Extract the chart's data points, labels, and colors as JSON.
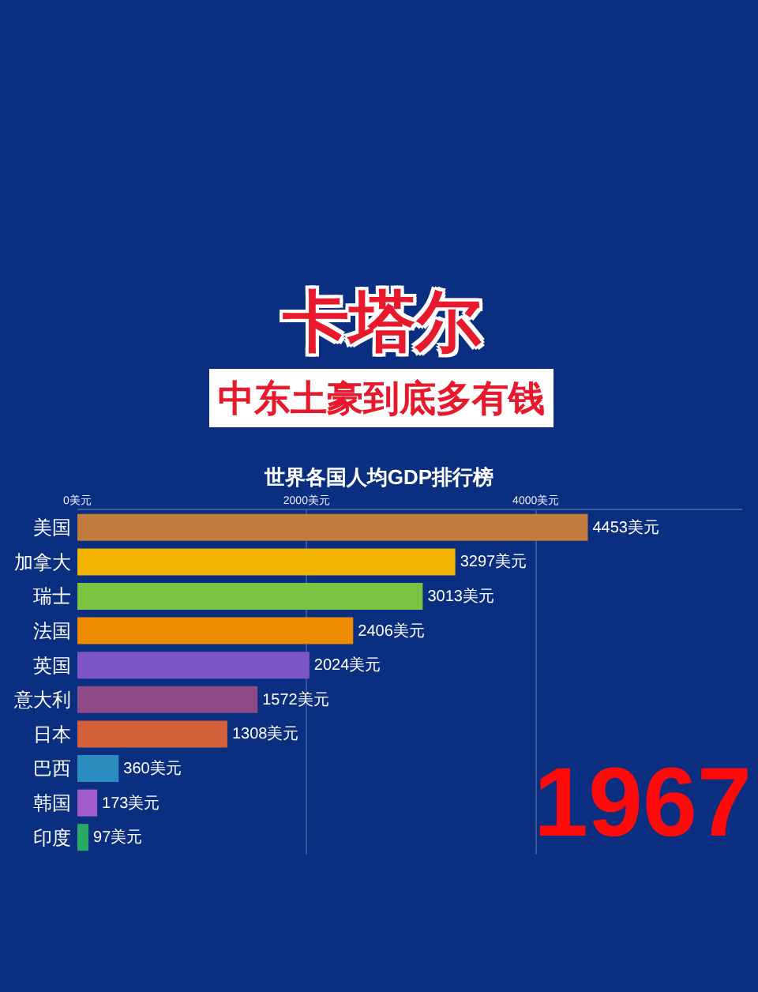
{
  "chart_data": {
    "type": "bar",
    "orientation": "horizontal",
    "title": "世界各国人均GDP排行榜",
    "annotations": [
      "卡塔尔",
      "中东土豪到底多有钱",
      "1967"
    ],
    "categories": [
      "美国",
      "加拿大",
      "瑞士",
      "法国",
      "英国",
      "意大利",
      "日本",
      "巴西",
      "韩国",
      "印度"
    ],
    "values": [
      4453,
      3297,
      3013,
      2406,
      2024,
      1572,
      1308,
      360,
      173,
      97
    ],
    "colors": [
      "#c27c3e",
      "#f2b400",
      "#7cc243",
      "#f08c00",
      "#7d55c7",
      "#8e4a86",
      "#d4603a",
      "#2b8cbe",
      "#a05cc8",
      "#2aa866"
    ],
    "value_labels": [
      "4453美元",
      "3297美元",
      "3013美元",
      "2406美元",
      "2024美元",
      "1572美元",
      "1308美元",
      "360美元",
      "173美元",
      "97美元"
    ],
    "xlim": [
      0,
      5800
    ],
    "xticks": [
      {
        "value": 0,
        "label": "0美元"
      },
      {
        "value": 2000,
        "label": "2000美元"
      },
      {
        "value": 4000,
        "label": "4000美元"
      }
    ],
    "grid": "x"
  }
}
